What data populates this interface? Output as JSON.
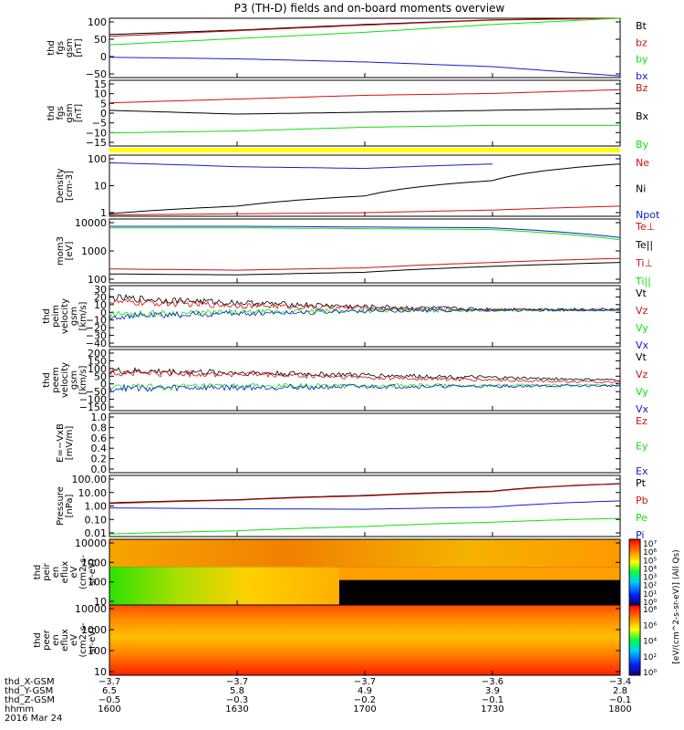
{
  "title": "P3 (TH-D) fields and on-board moments overview",
  "colors": {
    "black": "#000000",
    "red": "#d01010",
    "green": "#10e010",
    "blue": "#1020d0",
    "yellow": "#ffff00"
  },
  "panels": [
    {
      "id": "fgs_gsm",
      "ylabel": [
        "thd",
        "fgs",
        "gsm",
        "[nT]"
      ],
      "yticks": [
        "100",
        "50",
        "0",
        "−50"
      ],
      "legend": [
        {
          "t": "Bt",
          "c": "black"
        },
        {
          "t": "bz",
          "c": "red"
        },
        {
          "t": "by",
          "c": "green"
        },
        {
          "t": "bx",
          "c": "blue"
        }
      ]
    },
    {
      "id": "fgs_dsl",
      "ylabel": [
        "thd",
        "fgs",
        "gsm",
        "[nT]"
      ],
      "yticks": [
        "15",
        "10",
        "5",
        "0",
        "−5",
        "−10",
        "−15"
      ],
      "legend": [
        {
          "t": "Bz",
          "c": "red"
        },
        {
          "t": "Bx",
          "c": "black"
        },
        {
          "t": "By",
          "c": "green"
        }
      ]
    },
    {
      "id": "density",
      "ylabel": [
        "Density",
        "[cm-3]"
      ],
      "yticks": [
        "100",
        "10",
        "1"
      ],
      "legend": [
        {
          "t": "Ne",
          "c": "red"
        },
        {
          "t": "Ni",
          "c": "black"
        },
        {
          "t": "Npot",
          "c": "blue"
        }
      ]
    },
    {
      "id": "temp",
      "ylabel": [
        "mom3",
        "[eV]"
      ],
      "yticks": [
        "10000",
        "1000",
        "100"
      ],
      "legend": [
        {
          "t": "Te⊥",
          "c": "red"
        },
        {
          "t": "Te||",
          "c": "black"
        },
        {
          "t": "Ti⊥",
          "c": "red"
        },
        {
          "t": "Ti||",
          "c": "green"
        }
      ]
    },
    {
      "id": "peim_vel",
      "ylabel": [
        "thd",
        "peim",
        "velocity",
        "gsm",
        "[km/s]"
      ],
      "yticks": [
        "30",
        "20",
        "10",
        "0",
        "−10",
        "−20",
        "−30",
        "−40"
      ],
      "legend": [
        {
          "t": "Vt",
          "c": "black"
        },
        {
          "t": "Vz",
          "c": "red"
        },
        {
          "t": "Vy",
          "c": "green"
        },
        {
          "t": "Vx",
          "c": "blue"
        }
      ]
    },
    {
      "id": "peem_vel",
      "ylabel": [
        "thd",
        "peem",
        "velocity",
        "gsm",
        "[km/s]"
      ],
      "yticks": [
        "200",
        "150",
        "100",
        "50",
        "0",
        "−50",
        "−100",
        "−150"
      ],
      "legend": [
        {
          "t": "Vt",
          "c": "black"
        },
        {
          "t": "Vz",
          "c": "red"
        },
        {
          "t": "Vy",
          "c": "green"
        },
        {
          "t": "Vx",
          "c": "blue"
        }
      ]
    },
    {
      "id": "efield",
      "ylabel": [
        "E=−VxB",
        "[mV/m]"
      ],
      "yticks": [
        "1.0",
        "0.8",
        "0.6",
        "0.4",
        "0.2",
        "0.0"
      ],
      "legend": [
        {
          "t": "Ez",
          "c": "red"
        },
        {
          "t": "Ey",
          "c": "green"
        },
        {
          "t": "Ex",
          "c": "blue"
        }
      ]
    },
    {
      "id": "pressure",
      "ylabel": [
        "Pressure",
        "[nPa]"
      ],
      "yticks": [
        "100.00",
        "10.00",
        "1.00",
        "0.10",
        "0.01"
      ],
      "legend": [
        {
          "t": "Pt",
          "c": "black"
        },
        {
          "t": "Pb",
          "c": "red"
        },
        {
          "t": "Pe",
          "c": "green"
        },
        {
          "t": "Pi",
          "c": "blue"
        }
      ]
    },
    {
      "id": "peir",
      "ylabel": [
        "thd",
        "peir",
        "en",
        "eflux",
        "eV",
        "(cm2-s-",
        "sr-eV)"
      ],
      "yticks": [
        "10000",
        "1000",
        "100",
        "10"
      ]
    },
    {
      "id": "peer",
      "ylabel": [
        "thd",
        "peer",
        "en",
        "eflux",
        "eV",
        "(cm2-s-",
        "sr-eV)"
      ],
      "yticks": [
        "10000",
        "1000",
        "100",
        "10"
      ]
    }
  ],
  "colorbars": [
    {
      "id": "cb_ion",
      "ticks": [
        "10⁷",
        "10⁶",
        "10⁵",
        "10⁴",
        "10³",
        "10²",
        "10¹",
        "10⁰"
      ]
    },
    {
      "id": "cb_ele",
      "ticks": [
        "10⁸",
        "10⁶",
        "10⁴",
        "10²",
        "10⁰"
      ]
    }
  ],
  "colorbar_label": "[eV/(cm^2-s-sr-eV)] (All Qs)",
  "xaxis": {
    "rows": [
      {
        "label": "thd_X-GSM",
        "values": [
          "−3.7",
          "−3.7",
          "−3.7",
          "−3.6",
          "−3.4"
        ]
      },
      {
        "label": "thd_Y-GSM",
        "values": [
          "6.5",
          "5.8",
          "4.9",
          "3.9",
          "2.8"
        ]
      },
      {
        "label": "thd_Z-GSM",
        "values": [
          "−0.5",
          "−0.3",
          "−0.2",
          "−0.1",
          "−0.1"
        ]
      },
      {
        "label": "hhmm",
        "values": [
          "1600",
          "1630",
          "1700",
          "1730",
          "1800"
        ]
      }
    ],
    "date": "2016 Mar 24"
  },
  "chart_data": {
    "type": "line",
    "title": "P3 (TH-D) fields and on-board moments overview",
    "x_time_ticks": [
      "1600",
      "1630",
      "1700",
      "1730",
      "1800"
    ],
    "date": "2016 Mar 24",
    "panels": [
      {
        "name": "thd fgs gsm [nT]",
        "ylim": [
          -80,
          110
        ],
        "series": [
          {
            "name": "Bt",
            "x": [
              "1600",
              "1630",
              "1700",
              "1730",
              "1800"
            ],
            "values": [
              58,
              72,
              90,
              105,
              110
            ]
          },
          {
            "name": "bz",
            "x": [
              "1600",
              "1630",
              "1700",
              "1730",
              "1800"
            ],
            "values": [
              52,
              70,
              88,
              104,
              110
            ]
          },
          {
            "name": "by",
            "x": [
              "1600",
              "1630",
              "1700",
              "1730",
              "1800"
            ],
            "values": [
              25,
              45,
              65,
              90,
              110
            ]
          },
          {
            "name": "bx",
            "x": [
              "1600",
              "1630",
              "1700",
              "1730",
              "1800"
            ],
            "values": [
              -15,
              -20,
              -30,
              -45,
              -75
            ]
          }
        ]
      },
      {
        "name": "thd fgs gsm [nT]",
        "ylim": [
          -18,
          17
        ],
        "series": [
          {
            "name": "Bz",
            "x": [
              "1600",
              "1630",
              "1700",
              "1730",
              "1800"
            ],
            "values": [
              5,
              7,
              9,
              10,
              12
            ]
          },
          {
            "name": "Bx",
            "x": [
              "1600",
              "1630",
              "1700",
              "1730",
              "1800"
            ],
            "values": [
              1,
              -1,
              0,
              1,
              2
            ]
          },
          {
            "name": "By",
            "x": [
              "1600",
              "1630",
              "1700",
              "1730",
              "1800"
            ],
            "values": [
              -11,
              -10,
              -8,
              -7,
              -7
            ]
          }
        ]
      },
      {
        "name": "Density [cm-3]",
        "scale": "log",
        "ylim": [
          0.8,
          200
        ],
        "series": [
          {
            "name": "Ne",
            "x": [
              "1600",
              "1630",
              "1700",
              "1730",
              "1800"
            ],
            "values": [
              0.9,
              1.0,
              1.1,
              1.4,
              2.0
            ]
          },
          {
            "name": "Ni",
            "x": [
              "1600",
              "1630",
              "1700",
              "1730",
              "1800"
            ],
            "values": [
              1.0,
              2.0,
              5,
              20,
              90
            ]
          },
          {
            "name": "Npot",
            "x": [
              "1600",
              "1630",
              "1700",
              "1730"
            ],
            "values": [
              100,
              70,
              60,
              90
            ]
          }
        ]
      },
      {
        "name": "mom3 [eV]",
        "scale": "log",
        "ylim": [
          60,
          15000
        ],
        "series": [
          {
            "name": "Te⊥",
            "x": [
              "1600",
              "1630",
              "1700",
              "1730",
              "1800"
            ],
            "values": [
              8000,
              8000,
              7500,
              7000,
              3000
            ]
          },
          {
            "name": "Te||",
            "x": [
              "1600",
              "1630",
              "1700",
              "1730",
              "1800"
            ],
            "values": [
              7000,
              7000,
              6500,
              6000,
              2500
            ]
          },
          {
            "name": "Ti⊥",
            "x": [
              "1600",
              "1630",
              "1700",
              "1730",
              "1800"
            ],
            "values": [
              200,
              180,
              220,
              350,
              500
            ]
          },
          {
            "name": "Ti||",
            "x": [
              "1600",
              "1630",
              "1700",
              "1730",
              "1800"
            ],
            "values": [
              130,
              120,
              150,
              250,
              350
            ]
          }
        ]
      },
      {
        "name": "thd peim velocity gsm [km/s]",
        "ylim": [
          -45,
          30
        ],
        "series": [
          {
            "name": "Vt",
            "x": [
              "1600",
              "1630",
              "1700",
              "1730",
              "1800"
            ],
            "values": [
              15,
              9,
              4,
              1,
              1
            ]
          },
          {
            "name": "Vz",
            "x": [
              "1600",
              "1630",
              "1700",
              "1730",
              "1800"
            ],
            "values": [
              10,
              6,
              2,
              0,
              0
            ]
          },
          {
            "name": "Vy",
            "x": [
              "1600",
              "1630",
              "1700",
              "1730",
              "1800"
            ],
            "values": [
              -5,
              -3,
              -1,
              0,
              0
            ]
          },
          {
            "name": "Vx",
            "x": [
              "1600",
              "1630",
              "1700",
              "1730",
              "1800"
            ],
            "values": [
              -8,
              -4,
              -1,
              0,
              0
            ]
          }
        ]
      },
      {
        "name": "thd peem velocity gsm [km/s]",
        "ylim": [
          -160,
          210
        ],
        "series": [
          {
            "name": "Vt",
            "x": [
              "1600",
              "1630",
              "1700",
              "1730",
              "1800"
            ],
            "values": [
              80,
              70,
              55,
              40,
              25
            ]
          },
          {
            "name": "Vz",
            "x": [
              "1600",
              "1630",
              "1700",
              "1730",
              "1800"
            ],
            "values": [
              70,
              60,
              40,
              25,
              10
            ]
          },
          {
            "name": "Vy",
            "x": [
              "1600",
              "1630",
              "1700",
              "1730",
              "1800"
            ],
            "values": [
              -20,
              -15,
              -10,
              -8,
              -5
            ]
          },
          {
            "name": "Vx",
            "x": [
              "1600",
              "1630",
              "1700",
              "1730",
              "1800"
            ],
            "values": [
              -25,
              -20,
              -15,
              -12,
              -10
            ]
          }
        ]
      },
      {
        "name": "E=-VxB [mV/m]",
        "ylim": [
          0,
          1.0
        ],
        "series": []
      },
      {
        "name": "Pressure [nPa]",
        "scale": "log",
        "ylim": [
          0.008,
          150
        ],
        "series": [
          {
            "name": "Pt",
            "x": [
              "1600",
              "1630",
              "1700",
              "1730",
              "1800"
            ],
            "values": [
              1.8,
              3,
              6,
              12,
              40
            ]
          },
          {
            "name": "Pb",
            "x": [
              "1600",
              "1630",
              "1700",
              "1730",
              "1800"
            ],
            "values": [
              1.6,
              2.8,
              5.5,
              11,
              38
            ]
          },
          {
            "name": "Pe",
            "x": [
              "1600",
              "1630",
              "1700",
              "1730",
              "1800"
            ],
            "values": [
              0.012,
              0.02,
              0.04,
              0.08,
              0.15
            ]
          },
          {
            "name": "Pi",
            "x": [
              "1600",
              "1630",
              "1700",
              "1730",
              "1800"
            ],
            "values": [
              0.8,
              0.7,
              0.65,
              0.9,
              2.5
            ]
          }
        ]
      }
    ]
  }
}
